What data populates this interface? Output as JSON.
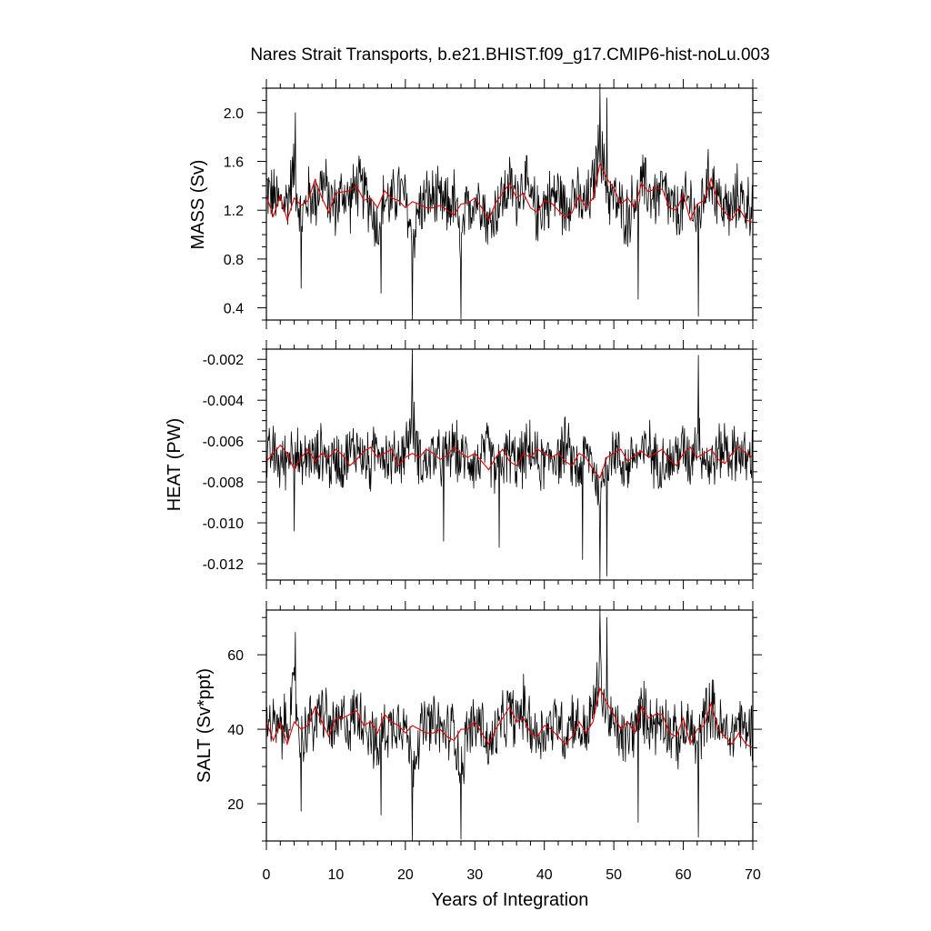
{
  "figure": {
    "title": "Nares Strait Transports, b.e21.BHIST.f09_g17.CMIP6-hist-noLu.003",
    "xlabel": "Years of Integration"
  },
  "colors": {
    "raw_series": "#000000",
    "smooth_series": "#e60000",
    "frame": "#000000",
    "background": "#ffffff"
  },
  "chart_data": [
    {
      "type": "line",
      "panel": "top",
      "ylabel": "MASS (Sv)",
      "xlim": [
        0,
        70
      ],
      "ylim": [
        0.3,
        2.2
      ],
      "xticks": [
        0,
        10,
        20,
        30,
        40,
        50,
        60,
        70
      ],
      "yticks": [
        0.4,
        0.8,
        1.2,
        1.6,
        2.0
      ],
      "ytick_labels": [
        "0.4",
        "0.8",
        "1.2",
        "1.6",
        "2.0"
      ],
      "series": [
        {
          "style": "thin black line (monthly values)",
          "stats": {
            "mean": 1.26,
            "amplitude": 0.22
          },
          "x": [
            0,
            1,
            2,
            3,
            4,
            5,
            6,
            7,
            8,
            9,
            10,
            11,
            12,
            13,
            14,
            15,
            16,
            17,
            18,
            19,
            20,
            21,
            22,
            23,
            24,
            25,
            26,
            27,
            28,
            29,
            30,
            31,
            32,
            33,
            34,
            35,
            36,
            37,
            38,
            39,
            40,
            41,
            42,
            43,
            44,
            45,
            46,
            47,
            48,
            49,
            50,
            51,
            52,
            53,
            54,
            55,
            56,
            57,
            58,
            59,
            60,
            61,
            62,
            63,
            64,
            65,
            66,
            67,
            68,
            69,
            70
          ],
          "y": [
            1.38,
            1.3,
            1.25,
            1.28,
            1.55,
            1.1,
            1.32,
            1.28,
            1.45,
            1.3,
            1.22,
            1.35,
            1.28,
            1.4,
            1.36,
            1.25,
            1.05,
            1.3,
            1.25,
            1.38,
            1.28,
            0.95,
            1.22,
            1.28,
            1.3,
            1.25,
            1.22,
            1.3,
            0.9,
            1.25,
            1.28,
            1.32,
            1.05,
            1.22,
            1.3,
            1.4,
            1.32,
            1.45,
            1.28,
            1.18,
            1.25,
            1.3,
            1.35,
            1.2,
            1.38,
            1.25,
            1.22,
            1.4,
            1.75,
            1.35,
            1.3,
            1.2,
            1.15,
            1.3,
            1.42,
            1.35,
            1.3,
            1.38,
            1.25,
            1.15,
            1.22,
            1.3,
            1.1,
            1.35,
            1.48,
            1.3,
            1.22,
            1.18,
            1.35,
            1.22,
            1.28
          ],
          "extremes": [
            {
              "x": 21.0,
              "y": 0.3
            },
            {
              "x": 28.0,
              "y": 0.31
            },
            {
              "x": 48.0,
              "y": 2.2
            },
            {
              "x": 49.0,
              "y": 2.12
            },
            {
              "x": 62.2,
              "y": 0.33
            },
            {
              "x": 5.0,
              "y": 0.56
            },
            {
              "x": 16.5,
              "y": 0.52
            },
            {
              "x": 53.5,
              "y": 0.47
            },
            {
              "x": 4.2,
              "y": 2.0
            }
          ]
        },
        {
          "style": "red smoothed line (annual mean)",
          "x": [
            0,
            1,
            2,
            3,
            4,
            5,
            6,
            7,
            8,
            9,
            10,
            11,
            12,
            13,
            14,
            15,
            16,
            17,
            18,
            19,
            20,
            21,
            22,
            23,
            24,
            25,
            26,
            27,
            28,
            29,
            30,
            31,
            32,
            33,
            34,
            35,
            36,
            37,
            38,
            39,
            40,
            41,
            42,
            43,
            44,
            45,
            46,
            47,
            48,
            49,
            50,
            51,
            52,
            53,
            54,
            55,
            56,
            57,
            58,
            59,
            60,
            61,
            62,
            63,
            64,
            65,
            66,
            67,
            68,
            69,
            70
          ],
          "y": [
            1.32,
            1.15,
            1.32,
            1.12,
            1.3,
            1.24,
            1.28,
            1.45,
            1.3,
            1.18,
            1.34,
            1.35,
            1.36,
            1.4,
            1.28,
            1.3,
            1.22,
            1.36,
            1.3,
            1.28,
            1.22,
            1.27,
            1.25,
            1.22,
            1.22,
            1.24,
            1.2,
            1.16,
            1.25,
            1.26,
            1.3,
            1.22,
            1.12,
            1.26,
            1.34,
            1.42,
            1.3,
            1.34,
            1.22,
            1.18,
            1.28,
            1.26,
            1.2,
            1.14,
            1.18,
            1.32,
            1.22,
            1.3,
            1.58,
            1.46,
            1.38,
            1.25,
            1.3,
            1.22,
            1.42,
            1.35,
            1.38,
            1.37,
            1.22,
            1.2,
            1.33,
            1.12,
            1.25,
            1.28,
            1.46,
            1.26,
            1.18,
            1.12,
            1.22,
            1.12,
            1.1
          ]
        }
      ]
    },
    {
      "type": "line",
      "panel": "middle",
      "ylabel": "HEAT (PW)",
      "xlim": [
        0,
        70
      ],
      "ylim": [
        -0.0128,
        -0.0015
      ],
      "xticks": [
        0,
        10,
        20,
        30,
        40,
        50,
        60,
        70
      ],
      "yticks": [
        -0.012,
        -0.01,
        -0.008,
        -0.006,
        -0.004,
        -0.002
      ],
      "ytick_labels": [
        "-0.012",
        "-0.010",
        "-0.008",
        "-0.006",
        "-0.004",
        "-0.002"
      ],
      "series": [
        {
          "style": "thin black line (monthly values)",
          "stats": {
            "mean": -0.0068,
            "amplitude": 0.0012
          },
          "x": [
            0,
            1,
            2,
            3,
            4,
            5,
            6,
            7,
            8,
            9,
            10,
            11,
            12,
            13,
            14,
            15,
            16,
            17,
            18,
            19,
            20,
            21,
            22,
            23,
            24,
            25,
            26,
            27,
            28,
            29,
            30,
            31,
            32,
            33,
            34,
            35,
            36,
            37,
            38,
            39,
            40,
            41,
            42,
            43,
            44,
            45,
            46,
            47,
            48,
            49,
            50,
            51,
            52,
            53,
            54,
            55,
            56,
            57,
            58,
            59,
            60,
            61,
            62,
            63,
            64,
            65,
            66,
            67,
            68,
            69,
            70
          ],
          "y": [
            -0.007,
            -0.0065,
            -0.0072,
            -0.0068,
            -0.006,
            -0.0075,
            -0.0066,
            -0.007,
            -0.0064,
            -0.0072,
            -0.0068,
            -0.007,
            -0.0066,
            -0.0062,
            -0.0068,
            -0.0072,
            -0.006,
            -0.0066,
            -0.007,
            -0.0068,
            -0.0064,
            -0.005,
            -0.0068,
            -0.0072,
            -0.0066,
            -0.007,
            -0.0068,
            -0.0062,
            -0.007,
            -0.0066,
            -0.0072,
            -0.0068,
            -0.0064,
            -0.0076,
            -0.007,
            -0.0066,
            -0.0072,
            -0.0068,
            -0.0064,
            -0.007,
            -0.0072,
            -0.0066,
            -0.0068,
            -0.0062,
            -0.007,
            -0.0074,
            -0.0066,
            -0.007,
            -0.009,
            -0.0068,
            -0.0064,
            -0.007,
            -0.0072,
            -0.0066,
            -0.0068,
            -0.0062,
            -0.007,
            -0.0068,
            -0.0072,
            -0.0066,
            -0.0064,
            -0.007,
            -0.0056,
            -0.0068,
            -0.0072,
            -0.0066,
            -0.0062,
            -0.0068,
            -0.0064,
            -0.007,
            -0.0068
          ],
          "extremes": [
            {
              "x": 21.0,
              "y": -0.0015
            },
            {
              "x": 62.2,
              "y": -0.0018
            },
            {
              "x": 48.0,
              "y": -0.0128
            },
            {
              "x": 49.0,
              "y": -0.0126
            },
            {
              "x": 45.5,
              "y": -0.0118
            },
            {
              "x": 33.5,
              "y": -0.0112
            },
            {
              "x": 4.0,
              "y": -0.0104
            },
            {
              "x": 25.5,
              "y": -0.0109
            }
          ]
        },
        {
          "style": "red smoothed line (annual mean)",
          "x": [
            0,
            1,
            2,
            3,
            4,
            5,
            6,
            7,
            8,
            9,
            10,
            11,
            12,
            13,
            14,
            15,
            16,
            17,
            18,
            19,
            20,
            21,
            22,
            23,
            24,
            25,
            26,
            27,
            28,
            29,
            30,
            31,
            32,
            33,
            34,
            35,
            36,
            37,
            38,
            39,
            40,
            41,
            42,
            43,
            44,
            45,
            46,
            47,
            48,
            49,
            50,
            51,
            52,
            53,
            54,
            55,
            56,
            57,
            58,
            59,
            60,
            61,
            62,
            63,
            64,
            65,
            66,
            67,
            68,
            69,
            70
          ],
          "y": [
            -0.007,
            -0.0066,
            -0.0062,
            -0.0066,
            -0.0074,
            -0.0068,
            -0.0064,
            -0.007,
            -0.0066,
            -0.0068,
            -0.0064,
            -0.0067,
            -0.0072,
            -0.0069,
            -0.0065,
            -0.0063,
            -0.0068,
            -0.0066,
            -0.0064,
            -0.0072,
            -0.0068,
            -0.0066,
            -0.0068,
            -0.0064,
            -0.0066,
            -0.0069,
            -0.0067,
            -0.0063,
            -0.0066,
            -0.0068,
            -0.0066,
            -0.007,
            -0.0074,
            -0.0068,
            -0.0064,
            -0.007,
            -0.0072,
            -0.0066,
            -0.0068,
            -0.0064,
            -0.0066,
            -0.0068,
            -0.0066,
            -0.007,
            -0.0072,
            -0.0066,
            -0.0068,
            -0.0074,
            -0.0078,
            -0.0068,
            -0.0066,
            -0.0064,
            -0.007,
            -0.0067,
            -0.0065,
            -0.0068,
            -0.0066,
            -0.0064,
            -0.0069,
            -0.0072,
            -0.0066,
            -0.0063,
            -0.0068,
            -0.0066,
            -0.0064,
            -0.0069,
            -0.0071,
            -0.0066,
            -0.0063,
            -0.0066,
            -0.0068
          ]
        }
      ]
    },
    {
      "type": "line",
      "panel": "bottom",
      "ylabel": "SALT (Sv*ppt)",
      "xlim": [
        0,
        70
      ],
      "ylim": [
        10,
        72
      ],
      "xticks": [
        0,
        10,
        20,
        30,
        40,
        50,
        60,
        70
      ],
      "yticks": [
        20,
        40,
        60
      ],
      "ytick_labels": [
        "20",
        "40",
        "60"
      ],
      "series": [
        {
          "style": "thin black line (monthly values)",
          "stats": {
            "mean": 40.5,
            "amplitude": 7.0
          },
          "x": [
            0,
            1,
            2,
            3,
            4,
            5,
            6,
            7,
            8,
            9,
            10,
            11,
            12,
            13,
            14,
            15,
            16,
            17,
            18,
            19,
            20,
            21,
            22,
            23,
            24,
            25,
            26,
            27,
            28,
            29,
            30,
            31,
            32,
            33,
            34,
            35,
            36,
            37,
            38,
            39,
            40,
            41,
            42,
            43,
            44,
            45,
            46,
            47,
            48,
            49,
            50,
            51,
            52,
            53,
            54,
            55,
            56,
            57,
            58,
            59,
            60,
            61,
            62,
            63,
            64,
            65,
            66,
            67,
            68,
            69,
            70
          ],
          "y": [
            44,
            41,
            39,
            42,
            50,
            36,
            42,
            41,
            46,
            41,
            39,
            43,
            41,
            45,
            43,
            40,
            33,
            41,
            40,
            44,
            41,
            30,
            39,
            41,
            41,
            40,
            39,
            41,
            29,
            40,
            41,
            42,
            34,
            39,
            41,
            45,
            42,
            46,
            41,
            38,
            40,
            41,
            43,
            38,
            44,
            40,
            39,
            45,
            55,
            43,
            41,
            38,
            37,
            41,
            45,
            43,
            41,
            44,
            40,
            37,
            39,
            41,
            35,
            43,
            47,
            41,
            39,
            38,
            43,
            39,
            41
          ],
          "extremes": [
            {
              "x": 21.0,
              "y": 10
            },
            {
              "x": 28.0,
              "y": 10.5
            },
            {
              "x": 48.0,
              "y": 72
            },
            {
              "x": 49.0,
              "y": 70
            },
            {
              "x": 62.2,
              "y": 11
            },
            {
              "x": 4.2,
              "y": 66
            },
            {
              "x": 5.0,
              "y": 18
            },
            {
              "x": 16.5,
              "y": 17
            },
            {
              "x": 53.5,
              "y": 15
            }
          ]
        },
        {
          "style": "red smoothed line (annual mean)",
          "x": [
            0,
            1,
            2,
            3,
            4,
            5,
            6,
            7,
            8,
            9,
            10,
            11,
            12,
            13,
            14,
            15,
            16,
            17,
            18,
            19,
            20,
            21,
            22,
            23,
            24,
            25,
            26,
            27,
            28,
            29,
            30,
            31,
            32,
            33,
            34,
            35,
            36,
            37,
            38,
            39,
            40,
            41,
            42,
            43,
            44,
            45,
            46,
            47,
            48,
            49,
            50,
            51,
            52,
            53,
            54,
            55,
            56,
            57,
            58,
            59,
            60,
            61,
            62,
            63,
            64,
            65,
            66,
            67,
            68,
            69,
            70
          ],
          "y": [
            42,
            37,
            42,
            36,
            42,
            40,
            41,
            46,
            42,
            38,
            43,
            43,
            44,
            45,
            41,
            42,
            39,
            44,
            42,
            41,
            39,
            41,
            40,
            39,
            39,
            40,
            38,
            37,
            40,
            40,
            42,
            39,
            36,
            40,
            43,
            46,
            42,
            43,
            39,
            38,
            41,
            40,
            38,
            36,
            38,
            42,
            39,
            42,
            51,
            47,
            44,
            40,
            42,
            39,
            46,
            43,
            44,
            44,
            39,
            38,
            43,
            36,
            40,
            41,
            47,
            40,
            38,
            36,
            39,
            36,
            35
          ]
        }
      ]
    }
  ]
}
